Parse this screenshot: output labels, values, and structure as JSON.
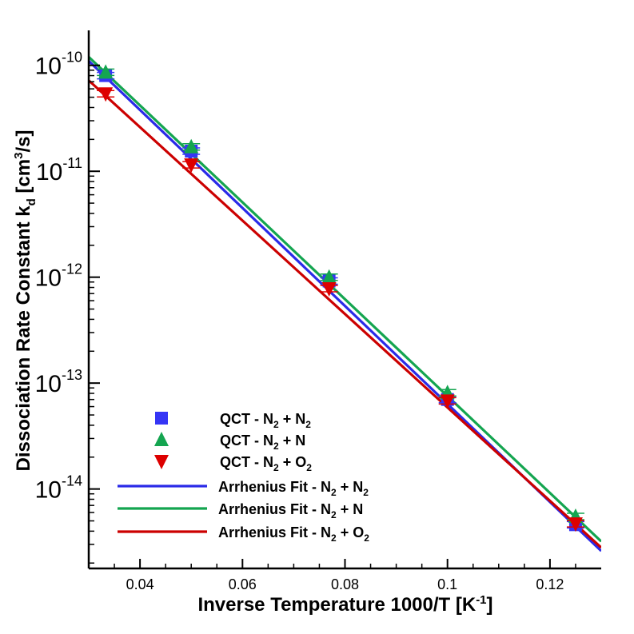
{
  "chart_data": {
    "type": "scatter",
    "xlabel": "Inverse Temperature 1000/T [K",
    "xlabel_sup": "-1",
    "xlabel_end": "]",
    "ylabel": "Dissociation Rate Constant k",
    "ylabel_sub": "d",
    "ylabel_mid": " [cm",
    "ylabel_sup": "3",
    "ylabel_end": "/s]",
    "xlim": [
      0.03,
      0.13
    ],
    "ylim_log10": [
      -14.75,
      -9.7
    ],
    "y_scale": "log",
    "x_ticks": [
      {
        "value": 0.04,
        "label": "0.04"
      },
      {
        "value": 0.06,
        "label": "0.06"
      },
      {
        "value": 0.08,
        "label": "0.08"
      },
      {
        "value": 0.1,
        "label": "0.1"
      },
      {
        "value": 0.12,
        "label": "0.12"
      }
    ],
    "y_ticks": [
      {
        "exp": -10,
        "base": "10",
        "sup": "-10"
      },
      {
        "exp": -11,
        "base": "10",
        "sup": "-11"
      },
      {
        "exp": -12,
        "base": "10",
        "sup": "-12"
      },
      {
        "exp": -13,
        "base": "10",
        "sup": "-13"
      },
      {
        "exp": -14,
        "base": "10",
        "sup": "-14"
      }
    ],
    "series": [
      {
        "name": "QCT - N2 + N2",
        "legend": {
          "a": "QCT - N",
          "s1": "2",
          "b": " + N",
          "s2": "2"
        },
        "kind": "markers",
        "marker": "square",
        "color": "#3535f5",
        "x": [
          0.0333,
          0.05,
          0.0769,
          0.1,
          0.125
        ],
        "y": [
          8e-11,
          1.55e-11,
          9.2e-13,
          7e-14,
          4.6e-15
        ]
      },
      {
        "name": "QCT - N2 + N",
        "legend": {
          "a": "QCT - N",
          "s1": "2",
          "b": " + N",
          "s2": ""
        },
        "kind": "markers",
        "marker": "triangle-up",
        "color": "#14a550",
        "x": [
          0.0333,
          0.05,
          0.0769,
          0.1,
          0.125
        ],
        "y": [
          8.6e-11,
          1.7e-11,
          1e-12,
          8.1e-14,
          5.5e-15
        ]
      },
      {
        "name": "QCT - N2 + O2",
        "legend": {
          "a": "QCT - N",
          "s1": "2",
          "b": " + O",
          "s2": "2"
        },
        "kind": "markers",
        "marker": "triangle-down",
        "color": "#dd0000",
        "x": [
          0.0333,
          0.05,
          0.0769,
          0.1,
          0.125
        ],
        "y": [
          5.4e-11,
          1.15e-11,
          7.8e-13,
          6.8e-14,
          4.7e-15
        ]
      },
      {
        "name": "Arrhenius Fit - N2 + N2",
        "legend": {
          "a": "Arrhenius Fit - N",
          "s1": "2",
          "b": " + N",
          "s2": "2"
        },
        "kind": "line",
        "color": "#2a2ae8",
        "x": [
          0.03,
          0.13
        ],
        "y": [
          1.1e-10,
          2.6e-15
        ]
      },
      {
        "name": "Arrhenius Fit - N2 + N",
        "legend": {
          "a": "Arrhenius Fit - N",
          "s1": "2",
          "b": " + N",
          "s2": ""
        },
        "kind": "line",
        "color": "#14a550",
        "x": [
          0.03,
          0.13
        ],
        "y": [
          1.2e-10,
          3.2e-15
        ]
      },
      {
        "name": "Arrhenius Fit - N2 + O2",
        "legend": {
          "a": "Arrhenius Fit - N",
          "s1": "2",
          "b": " + O",
          "s2": "2"
        },
        "kind": "line",
        "color": "#cc0000",
        "x": [
          0.03,
          0.13
        ],
        "y": [
          7.2e-11,
          2.8e-15
        ]
      }
    ]
  }
}
